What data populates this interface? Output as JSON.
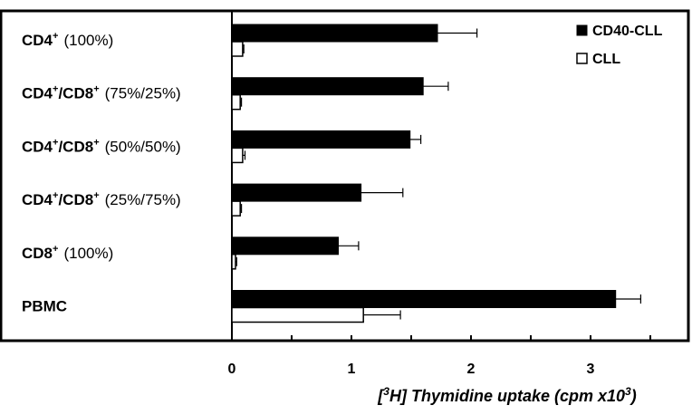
{
  "chart_data": {
    "type": "bar",
    "orientation": "horizontal",
    "categories": [
      {
        "main": "CD4",
        "sup": "+",
        "pct": "(100%)"
      },
      {
        "main": "CD4",
        "sup": "+",
        "main2": "/CD8",
        "sup2": "+",
        "pct": "(75%/25%)"
      },
      {
        "main": "CD4",
        "sup": "+",
        "main2": "/CD8",
        "sup2": "+",
        "pct": "(50%/50%)"
      },
      {
        "main": "CD4",
        "sup": "+",
        "main2": "/CD8",
        "sup2": "+",
        "pct": "(25%/75%)"
      },
      {
        "main": "CD8",
        "sup": "+",
        "pct": "(100%)"
      },
      {
        "main": "PBMC"
      }
    ],
    "series": [
      {
        "name": "CD40-CLL",
        "color": "#000000",
        "values": [
          1.72,
          1.6,
          1.49,
          1.08,
          0.89,
          3.21
        ],
        "errors": [
          0.33,
          0.21,
          0.09,
          0.35,
          0.17,
          0.21
        ]
      },
      {
        "name": "CLL",
        "color": "#ffffff",
        "values": [
          0.09,
          0.07,
          0.09,
          0.07,
          0.03,
          1.1
        ],
        "errors": [
          0.01,
          0.01,
          0.02,
          0.01,
          0.01,
          0.31
        ]
      }
    ],
    "xticks": [
      "0",
      "1",
      "2",
      "3"
    ],
    "xlim": [
      0,
      3.68
    ],
    "xlabel_parts": {
      "pre": "[",
      "sup1": "3",
      "mid": "H] Thymidine uptake (cpm x10",
      "sup2": "3",
      "post": ")"
    },
    "legend_position": "top-right"
  }
}
